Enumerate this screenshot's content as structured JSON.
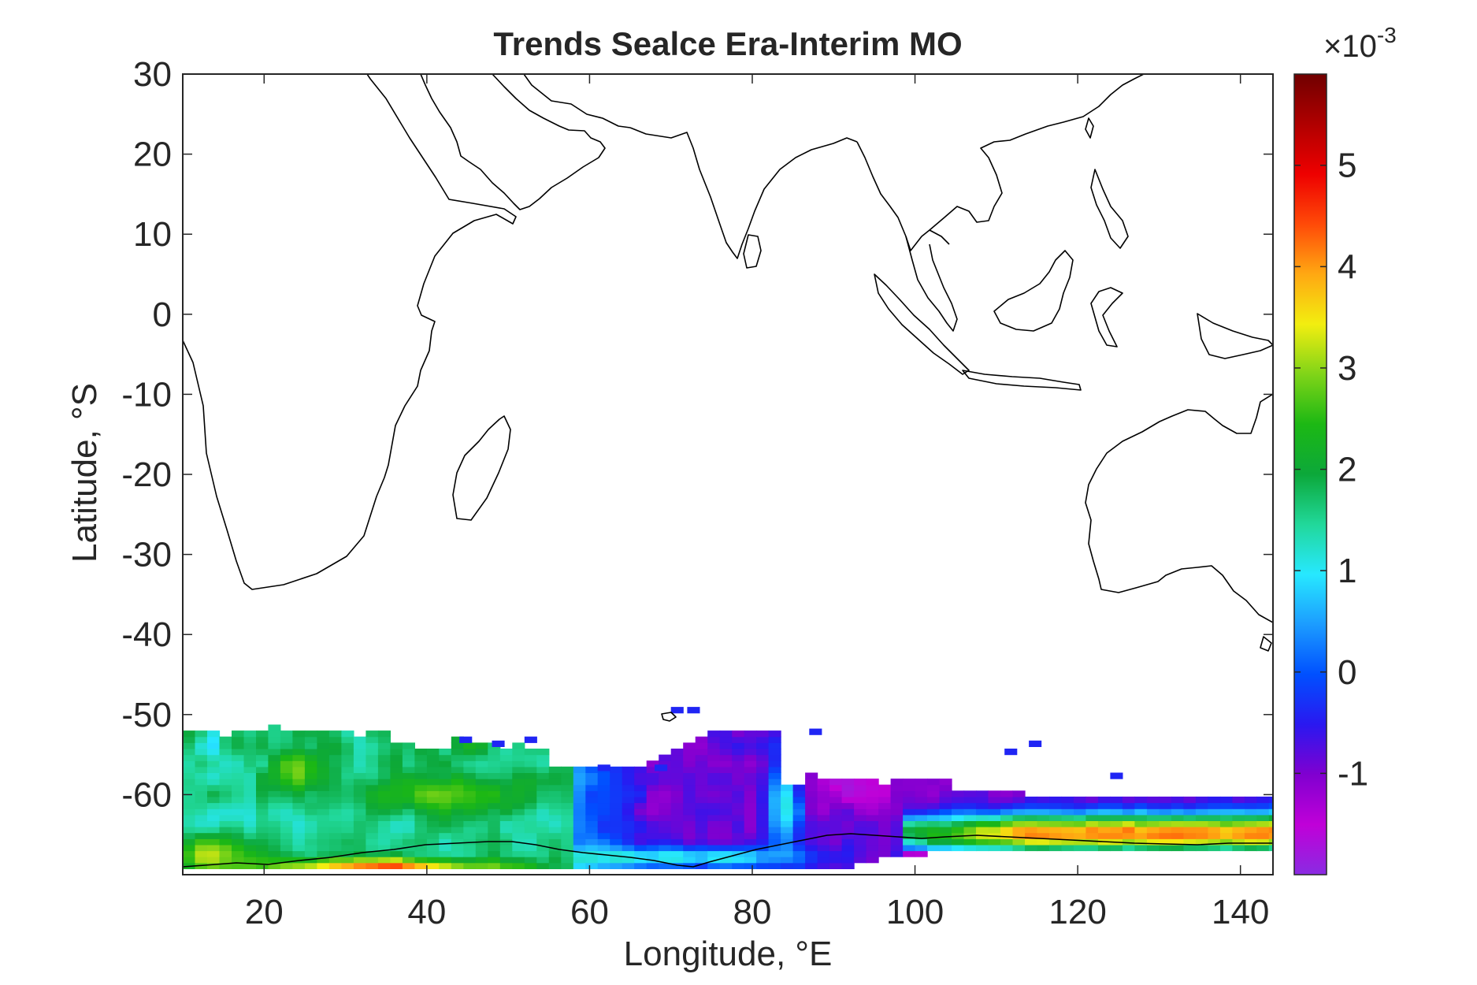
{
  "chart_data": {
    "type": "heatmap",
    "title": "Trends Sealce Era-Interim MO",
    "xlabel": "Longitude, °E",
    "ylabel": "Latitude, °S",
    "xlim": [
      10,
      144
    ],
    "ylim": [
      -70,
      30
    ],
    "x_ticks": [
      20,
      40,
      60,
      80,
      100,
      120,
      140
    ],
    "y_ticks": [
      30,
      20,
      10,
      0,
      -10,
      -20,
      -30,
      -40,
      -50,
      -60
    ],
    "colorbar": {
      "exponent_label": "×10",
      "exponent_power": "-3",
      "range": [
        -2.0,
        5.9
      ],
      "ticks": [
        5,
        4,
        3,
        2,
        1,
        0,
        -1
      ],
      "colors": [
        "#8a2be2",
        "#c000d8",
        "#8000d0",
        "#2a18f0",
        "#0050ff",
        "#1c9cff",
        "#27e8ff",
        "#21d89a",
        "#0ca83a",
        "#1cb814",
        "#80d418",
        "#f2ee10",
        "#ffa812",
        "#ff4a08",
        "#ee0000",
        "#b00000",
        "#700000"
      ]
    },
    "grid": false,
    "pattern": "trend values present only south of about -50 latitude; bluish-cyan 0-2 west of 60°E, purple around -1 between 60°E and 100°E, red-dark red 4-5.9 near the Antarctic coast east of 100°E"
  }
}
